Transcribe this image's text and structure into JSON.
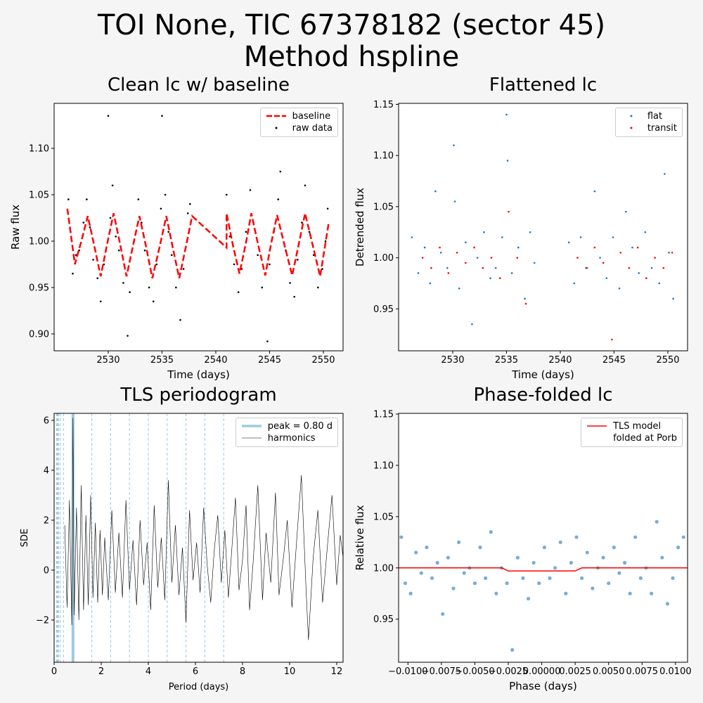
{
  "title": "TOI None, TIC 67378182 (sector 45)",
  "subtitle": "Method hspline",
  "chart_data": [
    {
      "type": "scatter",
      "title": "Clean lc w/ baseline",
      "x_label": "Time (days)",
      "y_label": "Raw flux",
      "legend": "upper right",
      "xlim": [
        2524.97,
        2551.83
      ],
      "ylim": [
        0.8818,
        1.1485
      ],
      "xticks": [
        2530,
        2535,
        2540,
        2545,
        2550
      ],
      "yticks": [
        {
          "value": 0.9,
          "label": "0.90"
        },
        {
          "value": 0.95,
          "label": "0.95"
        },
        {
          "value": 1.0,
          "label": "1.00"
        },
        {
          "value": 1.05,
          "label": "1.05"
        },
        {
          "value": 1.1,
          "label": "1.10"
        }
      ],
      "series": [
        {
          "name": "baseline",
          "type": "line",
          "linestyle": "dashed",
          "color": "#ff0000",
          "x": [
            2526.2,
            2526.9,
            2527.5,
            2528.1,
            2528.7,
            2529.3,
            2529.9,
            2530.5,
            2531.1,
            2531.7,
            2532.3,
            2532.9,
            2533.5,
            2534.1,
            2534.8,
            2535.4,
            2536.0,
            2536.6,
            2537.2,
            2537.8,
            2541.0,
            2541.0,
            2541.6,
            2542.2,
            2542.8,
            2543.3,
            2543.9,
            2544.6,
            2545.1,
            2545.7,
            2546.4,
            2547.1,
            2547.7,
            2548.3,
            2549.0,
            2549.7,
            2550.5
          ],
          "values": [
            1.035,
            0.975,
            1.0,
            1.027,
            0.995,
            0.962,
            0.997,
            1.03,
            0.997,
            0.962,
            0.995,
            1.027,
            0.995,
            0.96,
            0.995,
            1.027,
            0.993,
            0.96,
            0.993,
            1.027,
            0.993,
            1.03,
            0.995,
            0.965,
            0.998,
            1.03,
            0.998,
            0.963,
            0.995,
            1.028,
            0.995,
            0.963,
            0.996,
            1.03,
            0.996,
            0.962,
            1.02
          ]
        },
        {
          "name": "raw data",
          "type": "scatter",
          "color": "#000000",
          "x": [
            2526.3,
            2526.5,
            2526.7,
            2527.0,
            2527.3,
            2527.7,
            2528.0,
            2528.3,
            2528.6,
            2529.0,
            2529.3,
            2529.6,
            2530.0,
            2530.2,
            2530.4,
            2530.7,
            2531.0,
            2531.4,
            2531.8,
            2532.0,
            2532.4,
            2532.8,
            2533.1,
            2533.4,
            2533.8,
            2534.2,
            2534.5,
            2534.9,
            2535.0,
            2535.3,
            2535.6,
            2535.9,
            2536.3,
            2536.7,
            2537.0,
            2537.4,
            2537.6,
            2541.0,
            2541.3,
            2541.7,
            2542.1,
            2542.4,
            2542.8,
            2543.2,
            2543.5,
            2543.9,
            2544.3,
            2544.8,
            2545.0,
            2545.4,
            2545.8,
            2546.0,
            2546.5,
            2546.9,
            2547.3,
            2547.6,
            2548.0,
            2548.3,
            2548.7,
            2549.1,
            2549.5,
            2549.9,
            2550.2,
            2550.4
          ],
          "values": [
            1.045,
            1.01,
            0.965,
            0.985,
            0.99,
            1.02,
            1.045,
            1.015,
            0.98,
            0.96,
            0.935,
            0.975,
            1.135,
            1.025,
            1.06,
            1.005,
            0.99,
            0.955,
            0.898,
            0.945,
            1.0,
            1.045,
            1.02,
            0.99,
            0.95,
            0.935,
            0.975,
            1.035,
            1.135,
            1.05,
            1.01,
            0.985,
            0.95,
            0.915,
            0.97,
            1.03,
            1.04,
            1.05,
            1.005,
            0.975,
            0.945,
            0.97,
            1.01,
            1.055,
            1.02,
            0.985,
            0.95,
            0.892,
            0.975,
            1.01,
            1.045,
            1.075,
            0.99,
            0.955,
            0.94,
            0.98,
            1.02,
            1.06,
            1.01,
            0.985,
            0.95,
            0.97,
            1.0,
            1.035
          ]
        }
      ]
    },
    {
      "type": "scatter",
      "title": "Flattened lc",
      "x_label": "Time (days)",
      "y_label": "Detrended flux",
      "legend": "upper right",
      "xlim": [
        2524.97,
        2551.83
      ],
      "ylim": [
        0.909,
        1.151
      ],
      "xticks": [
        2530,
        2535,
        2540,
        2545,
        2550
      ],
      "yticks": [
        {
          "value": 0.95,
          "label": "0.95"
        },
        {
          "value": 1.0,
          "label": "1.00"
        },
        {
          "value": 1.05,
          "label": "1.05"
        },
        {
          "value": 1.1,
          "label": "1.10"
        },
        {
          "value": 1.15,
          "label": "1.15"
        }
      ],
      "series": [
        {
          "name": "flat",
          "type": "scatter",
          "color": "#1f77b4",
          "x": [
            2526.2,
            2526.8,
            2527.4,
            2527.9,
            2528.4,
            2528.9,
            2529.5,
            2530.1,
            2530.2,
            2530.6,
            2531.2,
            2531.8,
            2532.3,
            2532.9,
            2533.5,
            2534.0,
            2534.6,
            2535.0,
            2535.1,
            2535.5,
            2536.1,
            2536.7,
            2537.2,
            2537.6,
            2540.8,
            2541.3,
            2541.9,
            2542.5,
            2543.2,
            2543.7,
            2544.3,
            2544.9,
            2545.5,
            2546.1,
            2546.7,
            2547.3,
            2547.9,
            2548.5,
            2549.2,
            2549.7,
            2550.1,
            2550.5
          ],
          "values": [
            1.02,
            0.985,
            1.01,
            0.975,
            1.065,
            1.005,
            0.99,
            1.11,
            1.055,
            0.97,
            1.015,
            0.935,
            1.0,
            1.025,
            0.98,
            0.99,
            1.02,
            1.14,
            1.095,
            0.985,
            1.01,
            0.96,
            1.025,
            0.995,
            1.015,
            0.975,
            1.02,
            0.99,
            1.065,
            1.0,
            0.98,
            1.02,
            0.97,
            1.045,
            1.01,
            0.985,
            1.025,
            0.99,
            0.975,
            1.082,
            1.005,
            0.96
          ]
        },
        {
          "name": "transit",
          "type": "scatter",
          "color": "#ff0000",
          "x": [
            2527.2,
            2528.0,
            2528.8,
            2529.6,
            2530.4,
            2531.2,
            2532.0,
            2532.8,
            2533.6,
            2534.4,
            2535.2,
            2536.0,
            2536.8,
            2541.6,
            2542.4,
            2543.2,
            2544.0,
            2544.8,
            2545.6,
            2546.4,
            2547.2,
            2548.0,
            2548.8,
            2549.6,
            2550.4
          ],
          "values": [
            1.0,
            0.99,
            1.01,
            0.985,
            1.005,
            0.995,
            1.01,
            0.99,
            1.0,
            0.98,
            1.045,
            1.0,
            0.955,
            1.0,
            0.99,
            1.01,
            0.995,
            0.92,
            1.005,
            0.99,
            1.01,
            0.98,
            1.0,
            0.99,
            1.005
          ]
        }
      ]
    },
    {
      "type": "line",
      "title": "TLS periodogram",
      "x_label": "Period (days)",
      "y_label": "SDE",
      "legend": "upper right",
      "xlim": [
        0,
        12.27
      ],
      "ylim": [
        -3.69,
        6.28
      ],
      "xticks": [
        0,
        2,
        4,
        6,
        8,
        10,
        12
      ],
      "yticks": [
        {
          "value": -2,
          "label": "−2"
        },
        0,
        2,
        4,
        6
      ],
      "harmonic_periods": [
        0.1,
        0.114,
        0.133,
        0.16,
        0.2,
        0.267,
        0.4,
        1.6,
        2.4,
        3.2,
        4.0,
        4.8,
        5.6,
        6.4,
        7.2
      ],
      "harmonic_color": "#9ecae1",
      "series": [
        {
          "name": "peak = 0.80 d",
          "type": "vline",
          "color": "#9ecae1",
          "values": [
            0.8
          ]
        },
        {
          "name": "harmonics",
          "type": "line",
          "color": "#000000",
          "x": [
            0.45,
            0.55,
            0.65,
            0.75,
            0.8,
            0.85,
            0.95,
            1.05,
            1.15,
            1.25,
            1.35,
            1.45,
            1.55,
            1.65,
            1.75,
            1.85,
            1.95,
            2.05,
            2.15,
            2.3,
            2.45,
            2.6,
            2.75,
            2.9,
            3.05,
            3.2,
            3.35,
            3.5,
            3.65,
            3.8,
            3.95,
            4.1,
            4.25,
            4.4,
            4.55,
            4.7,
            4.85,
            5.0,
            5.15,
            5.3,
            5.45,
            5.6,
            5.75,
            5.9,
            6.05,
            6.2,
            6.35,
            6.5,
            6.65,
            6.8,
            6.95,
            7.1,
            7.25,
            7.4,
            7.55,
            7.7,
            7.85,
            8.0,
            8.15,
            8.3,
            8.45,
            8.65,
            8.85,
            9.0,
            9.2,
            9.4,
            9.55,
            9.75,
            9.9,
            10.1,
            10.3,
            10.5,
            10.7,
            10.8,
            11.0,
            11.2,
            11.4,
            11.6,
            11.8,
            12.0,
            12.15,
            12.3
          ],
          "values": [
            1.8,
            -1.5,
            2.8,
            -2.2,
            6.1,
            -1.8,
            2.5,
            -2.0,
            3.4,
            -1.6,
            2.2,
            -1.4,
            3.0,
            -1.1,
            1.9,
            -1.3,
            1.6,
            -1.0,
            1.3,
            -1.2,
            2.4,
            -0.9,
            1.5,
            -1.1,
            2.8,
            -0.8,
            1.2,
            -1.4,
            2.0,
            -0.6,
            1.1,
            -1.6,
            2.6,
            -0.7,
            1.3,
            -1.2,
            3.6,
            -0.5,
            1.8,
            -1.0,
            0.9,
            -2.1,
            2.4,
            -0.4,
            1.1,
            -0.9,
            2.5,
            0.2,
            -1.3,
            0.8,
            2.2,
            -0.5,
            1.6,
            -1.1,
            0.9,
            2.9,
            -0.8,
            0.4,
            2.6,
            -1.6,
            0.3,
            3.4,
            -1.2,
            1.5,
            -0.5,
            3.1,
            -1.0,
            0.6,
            2.0,
            -1.5,
            1.2,
            3.8,
            -0.8,
            -2.8,
            0.5,
            2.4,
            -1.3,
            0.9,
            3.0,
            -0.6,
            1.4,
            0.3
          ]
        }
      ]
    },
    {
      "type": "scatter",
      "title": "Phase-folded lc",
      "x_label": "Phase (days)",
      "y_label": "Relative flux",
      "legend": "upper right",
      "xlim": [
        -0.0107,
        0.0109
      ],
      "ylim": [
        0.908,
        1.1507
      ],
      "xticks": [
        {
          "value": -0.01,
          "label": "−0.0100"
        },
        {
          "value": -0.0075,
          "label": "−0.0075"
        },
        {
          "value": -0.005,
          "label": "−0.0050"
        },
        {
          "value": -0.0025,
          "label": "−0.0025"
        },
        {
          "value": 0,
          "label": "0.00000"
        },
        {
          "value": 0.0025,
          "label": "0.0025"
        },
        {
          "value": 0.005,
          "label": "0.0050"
        },
        {
          "value": 0.0075,
          "label": "0.0075"
        },
        {
          "value": 0.01,
          "label": "0.0100"
        }
      ],
      "yticks": [
        {
          "value": 0.95,
          "label": "0.95"
        },
        {
          "value": 1.0,
          "label": "1.00"
        },
        {
          "value": 1.05,
          "label": "1.05"
        },
        {
          "value": 1.1,
          "label": "1.10"
        },
        {
          "value": 1.15,
          "label": "1.15"
        }
      ],
      "series": [
        {
          "name": "TLS model\nfolded at Porb",
          "type": "line",
          "color": "#ff0000",
          "x": [
            -0.0107,
            -0.003,
            -0.0025,
            0.0025,
            0.003,
            0.0109
          ],
          "values": [
            1.0,
            1.0,
            0.997,
            0.997,
            1.0,
            1.0
          ]
        },
        {
          "type": "scatter",
          "color": "#1f77b4",
          "x": [
            -0.0105,
            -0.0102,
            -0.0098,
            -0.0094,
            -0.009,
            -0.0086,
            -0.0082,
            -0.0078,
            -0.0074,
            -0.007,
            -0.0066,
            -0.0062,
            -0.0058,
            -0.0054,
            -0.005,
            -0.0046,
            -0.0042,
            -0.0038,
            -0.0034,
            -0.003,
            -0.0026,
            -0.0022,
            -0.0018,
            -0.0014,
            -0.001,
            -0.0006,
            -0.0002,
            0.0002,
            0.0006,
            0.001,
            0.0014,
            0.0018,
            0.0022,
            0.0026,
            0.003,
            0.0034,
            0.0038,
            0.0042,
            0.0046,
            0.005,
            0.0054,
            0.0058,
            0.0062,
            0.0066,
            0.007,
            0.0074,
            0.0078,
            0.0082,
            0.0086,
            0.009,
            0.0094,
            0.0098,
            0.0102,
            0.0106
          ],
          "values": [
            1.03,
            0.985,
            0.975,
            1.015,
            0.995,
            1.02,
            0.99,
            1.005,
            0.955,
            1.01,
            0.98,
            1.025,
            0.995,
            1.0,
            0.985,
            1.02,
            0.99,
            1.035,
            0.975,
            1.0,
            0.985,
            0.92,
            1.01,
            0.99,
            0.97,
            1.005,
            0.985,
            1.02,
            0.99,
            1.0,
            1.025,
            0.975,
            1.005,
            1.03,
            0.99,
            1.015,
            0.98,
            1.0,
            1.01,
            0.985,
            1.02,
            0.995,
            1.005,
            0.975,
            1.03,
            0.99,
            1.0,
            0.975,
            1.045,
            1.01,
            0.965,
            0.99,
            1.02,
            1.03
          ]
        }
      ]
    }
  ]
}
